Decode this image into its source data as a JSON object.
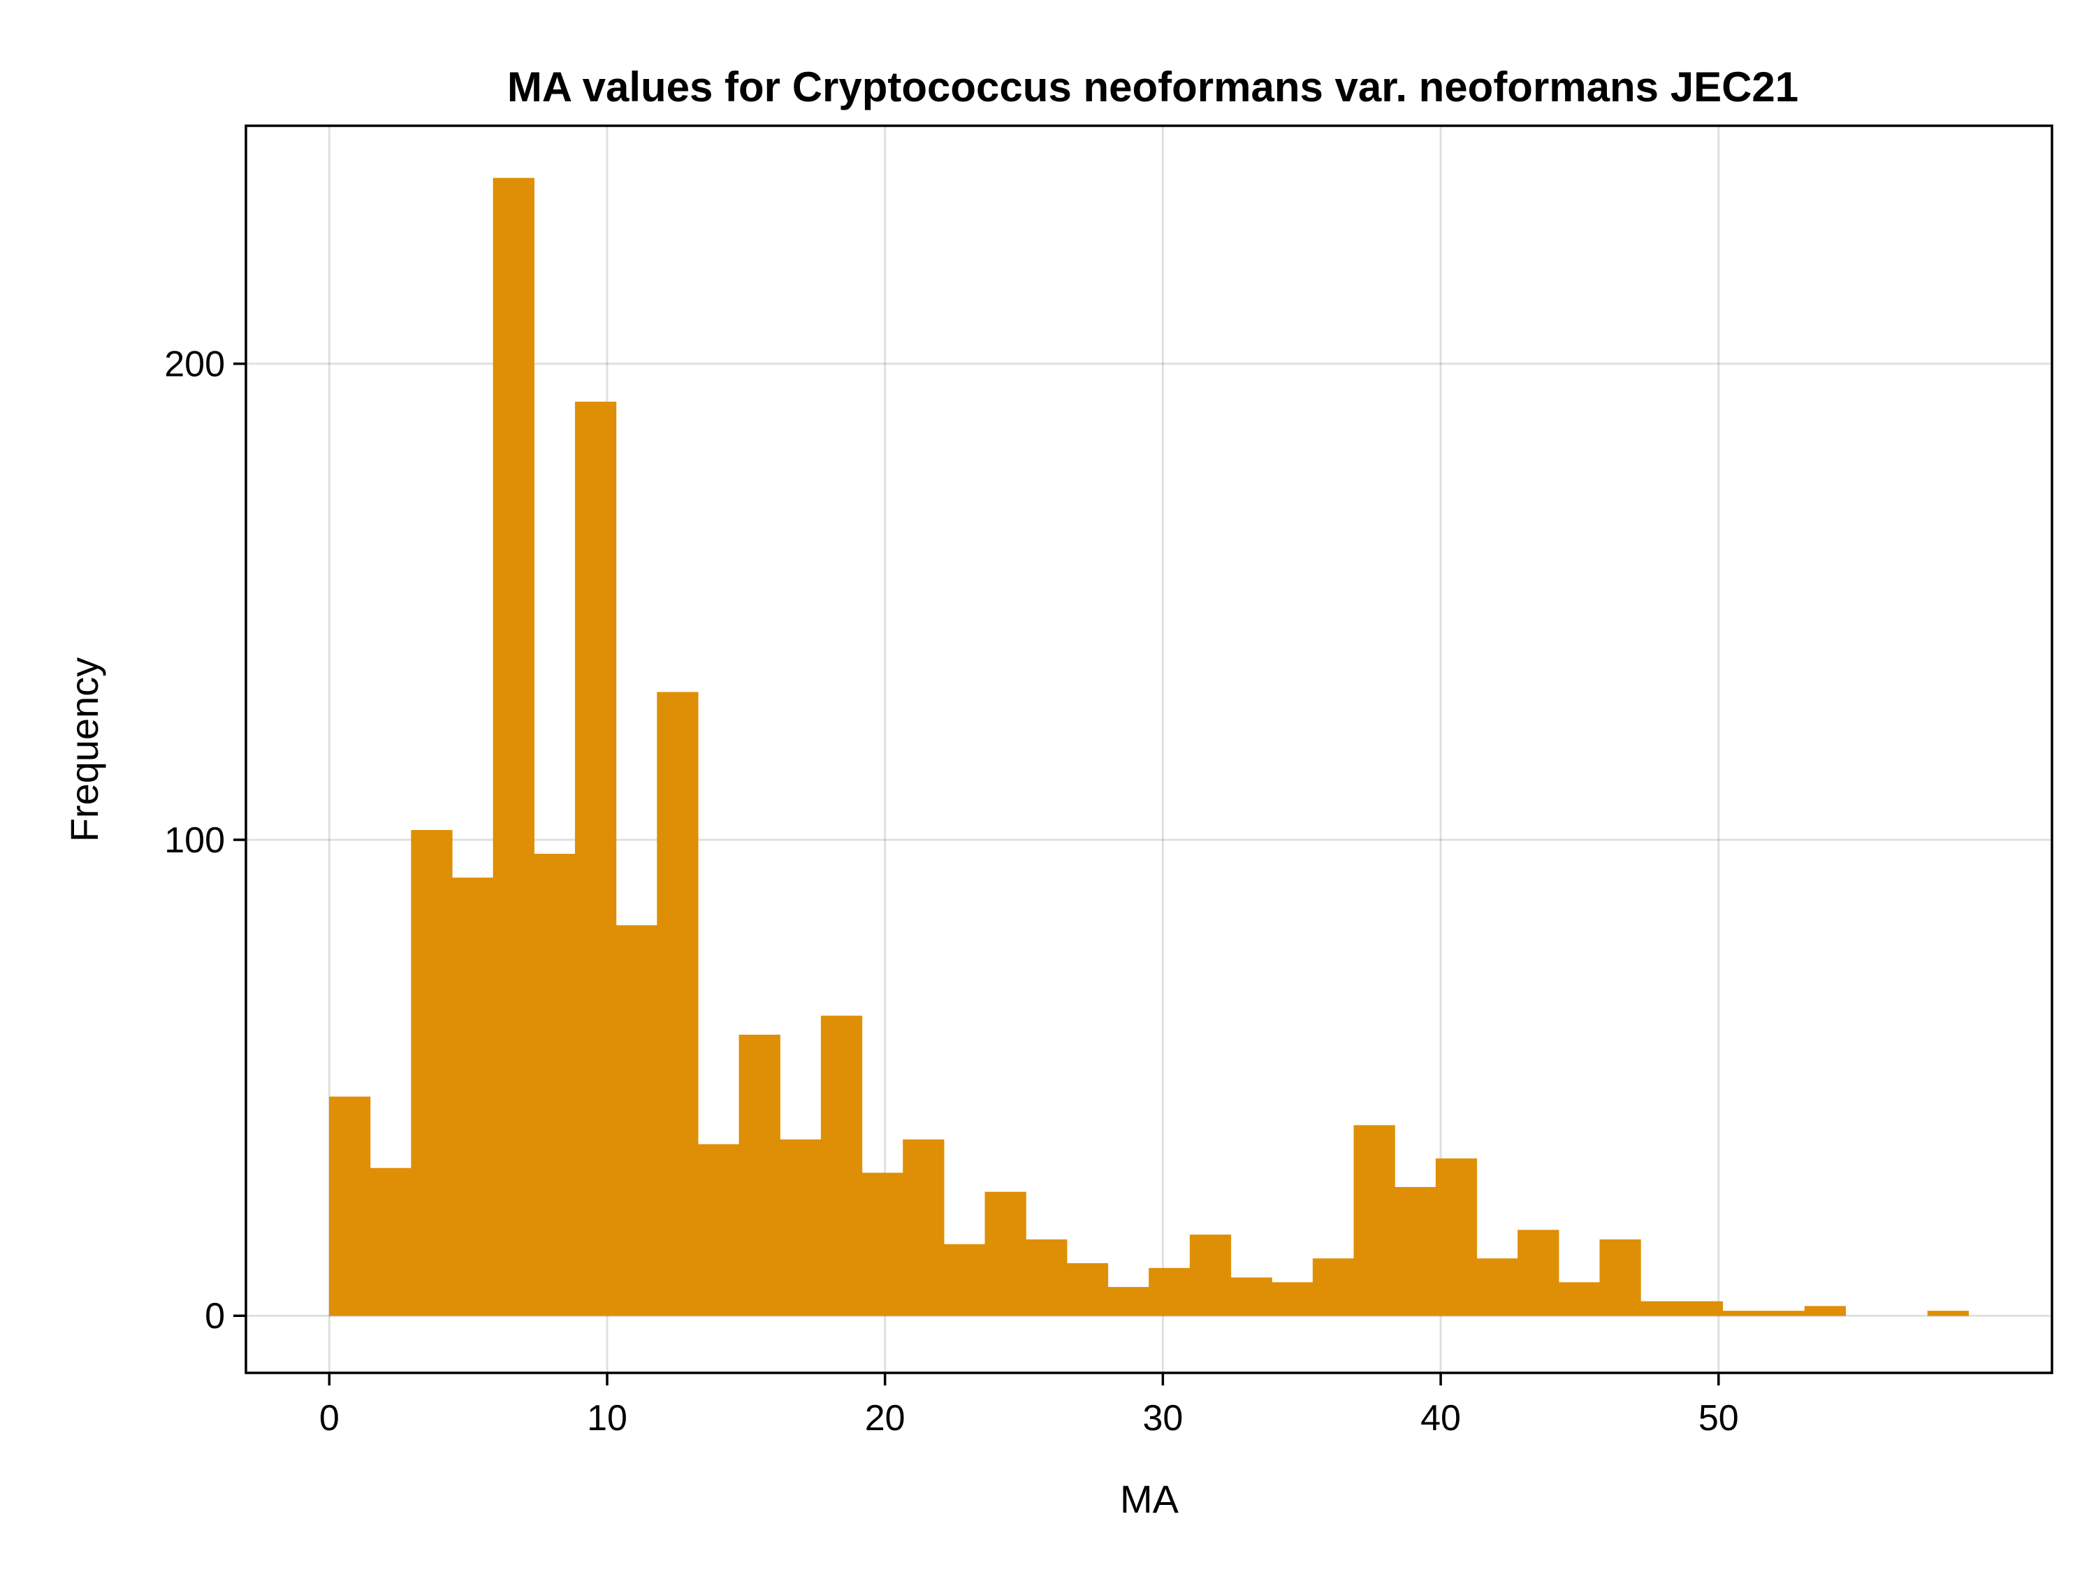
{
  "chart_data": {
    "type": "bar",
    "title": "MA values for Cryptococcus neoformans var. neoformans JEC21",
    "xlabel": "MA",
    "ylabel": "Frequency",
    "bar_color": "#de8f05",
    "grid": true,
    "legend": "none",
    "xlim": [
      -3,
      62
    ],
    "ylim": [
      -12,
      250
    ],
    "xticks": [
      0,
      10,
      20,
      30,
      40,
      50
    ],
    "yticks": [
      0,
      100,
      200
    ],
    "bin_start": 0,
    "bin_width": 1.475,
    "values": [
      46,
      31,
      102,
      92,
      239,
      97,
      192,
      82,
      131,
      36,
      59,
      37,
      63,
      30,
      37,
      15,
      26,
      16,
      11,
      6,
      10,
      17,
      8,
      7,
      12,
      40,
      27,
      33,
      12,
      18,
      7,
      16,
      3,
      3,
      1,
      1,
      2,
      0,
      0,
      1
    ]
  }
}
